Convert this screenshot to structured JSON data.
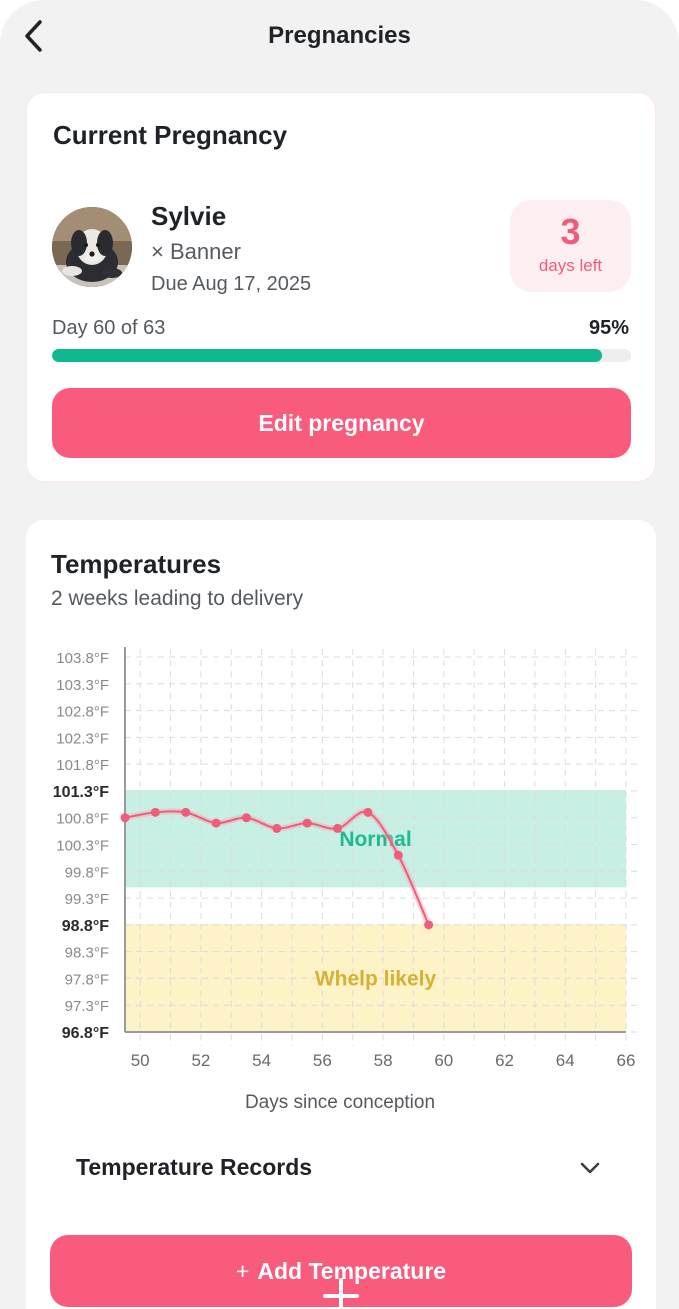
{
  "header": {
    "title": "Pregnancies"
  },
  "current": {
    "title": "Current Pregnancy",
    "dog_name": "Sylvie",
    "sire": "× Banner",
    "due": "Due Aug 17, 2025",
    "days_left_value": "3",
    "days_left_label": "days left",
    "progress_label": "Day 60 of 63",
    "progress_percent_label": "95%",
    "progress_value": 0.95,
    "edit_label": "Edit pregnancy"
  },
  "temperatures": {
    "title": "Temperatures",
    "subtitle": "2 weeks leading to delivery",
    "records_label": "Temperature Records",
    "add_label": "Add Temperature"
  },
  "chart_data": {
    "type": "line",
    "xlabel": "Days since conception",
    "ylabel": "",
    "xlim": [
      49.5,
      66
    ],
    "ylim": [
      96.8,
      103.8
    ],
    "grid": true,
    "x_ticks": [
      50,
      52,
      54,
      56,
      58,
      60,
      62,
      64,
      66
    ],
    "y_ticks": [
      "103.8°F",
      "103.3°F",
      "102.8°F",
      "102.3°F",
      "101.8°F",
      "101.3°F",
      "100.8°F",
      "100.3°F",
      "99.8°F",
      "99.3°F",
      "98.8°F",
      "98.3°F",
      "97.8°F",
      "97.3°F",
      "96.8°F"
    ],
    "y_tick_values": [
      103.8,
      103.3,
      102.8,
      102.3,
      101.8,
      101.3,
      100.8,
      100.3,
      99.8,
      99.3,
      98.8,
      98.3,
      97.8,
      97.3,
      96.8
    ],
    "bold_ticks": [
      101.3,
      98.8,
      96.8
    ],
    "bands": [
      {
        "label": "Normal",
        "y0": 99.5,
        "y1": 101.3,
        "color": "#c8efe3",
        "label_color": "#1fba8f"
      },
      {
        "label": "Whelp likely",
        "y0": 96.8,
        "y1": 98.8,
        "color": "#fdf3c6",
        "label_color": "#d6b234"
      }
    ],
    "series": [
      {
        "color": "#ef5d79",
        "x": [
          49.5,
          50.5,
          51.5,
          52.5,
          53.5,
          54.5,
          55.5,
          56.5,
          57.5,
          58.5,
          59.5
        ],
        "values": [
          100.8,
          100.9,
          100.9,
          100.7,
          100.8,
          100.6,
          100.7,
          100.6,
          100.9,
          100.1,
          98.8
        ]
      }
    ]
  }
}
